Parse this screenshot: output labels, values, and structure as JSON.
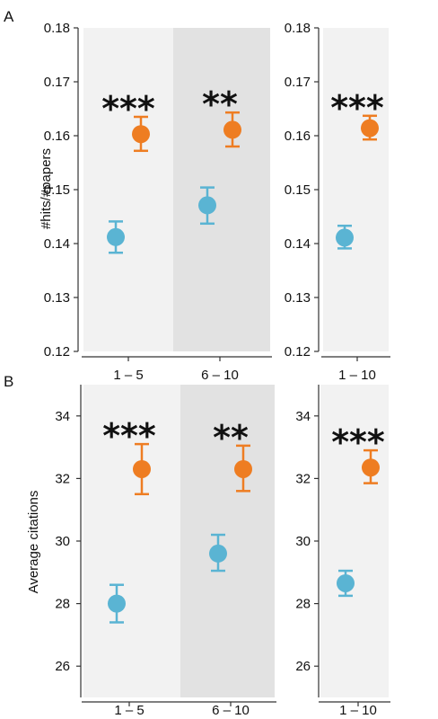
{
  "chart_data": [
    {
      "type": "scatter",
      "panel": "A",
      "ylabel": "#hits/#papers",
      "ylim": [
        0.12,
        0.18
      ],
      "yticks": [
        "0.12",
        "0.13",
        "0.14",
        "0.15",
        "0.16",
        "0.17",
        "0.18"
      ],
      "subplots": [
        {
          "categories": [
            "1 – 5",
            "6 – 10"
          ],
          "shaded": [
            false,
            true
          ],
          "series": [
            {
              "color": "#5ab4d3",
              "values": [
                0.1412,
                0.1471
              ],
              "err_low": [
                0.1383,
                0.1437
              ],
              "err_high": [
                0.1441,
                0.1504
              ]
            },
            {
              "color": "#ee7d22",
              "values": [
                0.1603,
                0.1611
              ],
              "err_low": [
                0.1572,
                0.158
              ],
              "err_high": [
                0.1635,
                0.1643
              ]
            }
          ],
          "annotations": [
            "***",
            "**"
          ]
        },
        {
          "categories": [
            "1 – 10"
          ],
          "shaded": [
            false
          ],
          "series": [
            {
              "color": "#5ab4d3",
              "values": [
                0.1411
              ],
              "err_low": [
                0.1391
              ],
              "err_high": [
                0.1433
              ]
            },
            {
              "color": "#ee7d22",
              "values": [
                0.1614
              ],
              "err_low": [
                0.1593
              ],
              "err_high": [
                0.1637
              ]
            }
          ],
          "annotations": [
            "***"
          ]
        }
      ]
    },
    {
      "type": "scatter",
      "panel": "B",
      "ylabel": "Average citations",
      "ylim": [
        25,
        35
      ],
      "yticks": [
        "26",
        "28",
        "30",
        "32",
        "34"
      ],
      "subplots": [
        {
          "categories": [
            "1 – 5",
            "6 – 10"
          ],
          "shaded": [
            false,
            true
          ],
          "series": [
            {
              "color": "#5ab4d3",
              "values": [
                28.0,
                29.6
              ],
              "err_low": [
                27.4,
                29.05
              ],
              "err_high": [
                28.6,
                30.2
              ]
            },
            {
              "color": "#ee7d22",
              "values": [
                32.3,
                32.3
              ],
              "err_low": [
                31.5,
                31.6
              ],
              "err_high": [
                33.1,
                33.05
              ]
            }
          ],
          "annotations": [
            "***",
            "**"
          ]
        },
        {
          "categories": [
            "1 – 10"
          ],
          "shaded": [
            false
          ],
          "series": [
            {
              "color": "#5ab4d3",
              "values": [
                28.65
              ],
              "err_low": [
                28.25
              ],
              "err_high": [
                29.05
              ]
            },
            {
              "color": "#ee7d22",
              "values": [
                32.35
              ],
              "err_low": [
                31.85
              ],
              "err_high": [
                32.9
              ]
            }
          ],
          "annotations": [
            "***"
          ]
        }
      ]
    }
  ]
}
